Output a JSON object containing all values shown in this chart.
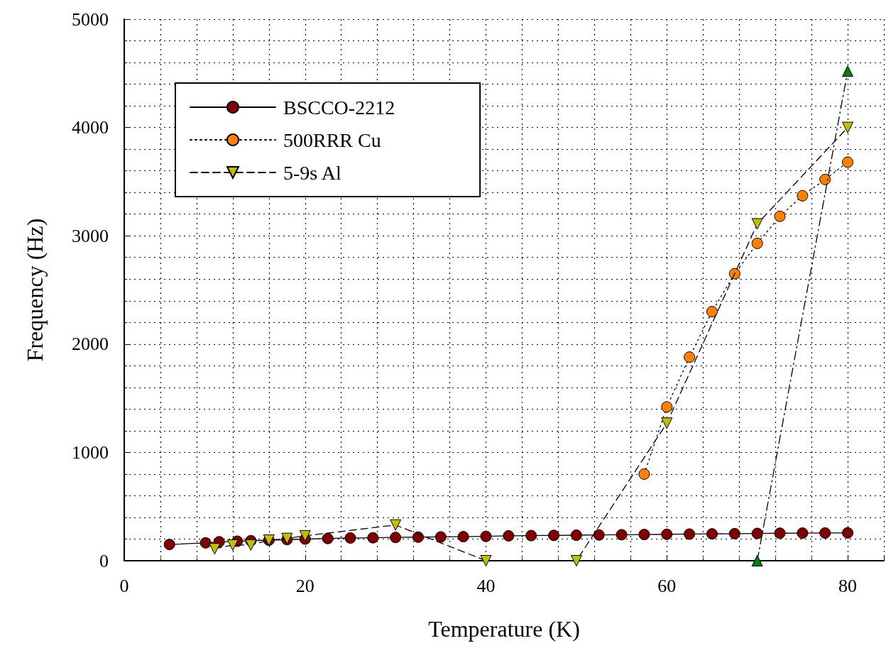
{
  "chart_data": {
    "type": "line",
    "xlabel": "Temperature (K)",
    "ylabel": "Frequency (Hz)",
    "xlim": [
      0,
      84
    ],
    "xticks": [
      0,
      20,
      40,
      60,
      80
    ],
    "ylim": [
      0,
      5000
    ],
    "yticks": [
      0,
      1000,
      2000,
      3000,
      4000,
      5000
    ],
    "grid": true,
    "legend": "top left",
    "series": [
      {
        "name": "BSCCO-2212",
        "color": "#800000",
        "marker": "circle",
        "line_style": "solid",
        "x": [
          5,
          9,
          10.5,
          12.5,
          14,
          16,
          18,
          20,
          22.5,
          25,
          27.5,
          30,
          32.5,
          35,
          37.5,
          40,
          42.5,
          45,
          47.5,
          50,
          52.5,
          55,
          57.5,
          60,
          62.5,
          65,
          67.5,
          70,
          72.5,
          75,
          77.5,
          80
        ],
        "values": [
          150,
          165,
          175,
          180,
          185,
          190,
          195,
          200,
          205,
          210,
          212,
          215,
          218,
          220,
          222,
          225,
          230,
          232,
          234,
          236,
          238,
          240,
          242,
          244,
          246,
          248,
          250,
          252,
          254,
          255,
          256,
          257
        ]
      },
      {
        "name": "500RRR Cu",
        "color": "#ff8000",
        "marker": "circle",
        "line_style": "dotted",
        "x": [
          57.5,
          60,
          62.5,
          65,
          67.5,
          70,
          72.5,
          75,
          77.5,
          80
        ],
        "values": [
          800,
          1420,
          1880,
          2300,
          2650,
          2930,
          3180,
          3370,
          3520,
          3680
        ]
      },
      {
        "name": "5-9s Al",
        "color": "#c0c000",
        "marker": "triangle-down",
        "line_style": "dashed",
        "x": [
          10,
          12,
          14,
          16,
          18,
          20,
          30,
          40,
          50,
          60,
          70,
          80
        ],
        "values": [
          110,
          145,
          145,
          190,
          205,
          230,
          330,
          0,
          0,
          1270,
          3110,
          4000
        ]
      },
      {
        "color": "#008000",
        "marker": "triangle",
        "line_style": "dashdot",
        "x": [
          70,
          80
        ],
        "values": [
          0,
          4520
        ]
      }
    ]
  }
}
